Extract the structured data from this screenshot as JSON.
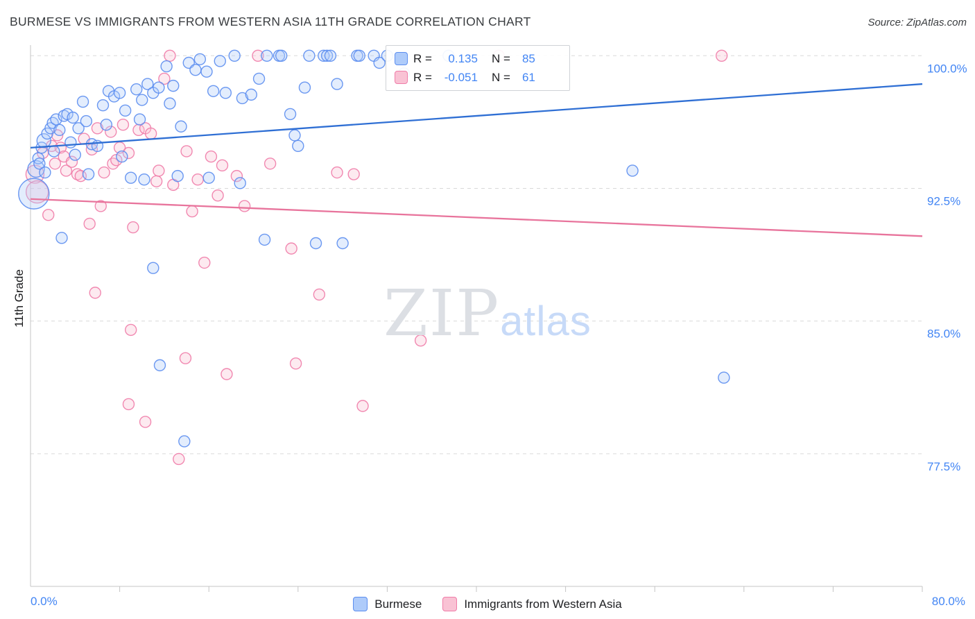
{
  "header": {
    "title": "BURMESE VS IMMIGRANTS FROM WESTERN ASIA 11TH GRADE CORRELATION CHART",
    "source": "Source: ZipAtlas.com"
  },
  "axes": {
    "y_label": "11th Grade",
    "x_min_label": "0.0%",
    "x_max_label": "80.0%"
  },
  "watermark": {
    "part1": "ZIP",
    "part2": "atlas"
  },
  "colors": {
    "axis_label_blue": "#4285f4",
    "grid": "#d9d9d9",
    "axis": "#c4c4c4",
    "blue_fill": "#aecbfa",
    "blue_stroke": "#5b8def",
    "pink_fill": "#f9c2d4",
    "pink_stroke": "#f07ca8"
  },
  "legend_box": {
    "rows": [
      {
        "r_label": "R =",
        "r_value": "0.135",
        "n_label": "N =",
        "n_value": "85",
        "fill": "#aecbfa",
        "stroke": "#5b8def"
      },
      {
        "r_label": "R =",
        "r_value": "-0.051",
        "n_label": "N =",
        "n_value": "61",
        "fill": "#f9c2d4",
        "stroke": "#f07ca8"
      }
    ]
  },
  "bottom_legend": {
    "items": [
      {
        "label": "Burmese",
        "fill": "#aecbfa",
        "stroke": "#5b8def"
      },
      {
        "label": "Immigrants from Western Asia",
        "fill": "#f9c2d4",
        "stroke": "#f07ca8"
      }
    ]
  },
  "chart_data": {
    "type": "scatter",
    "title": "BURMESE VS IMMIGRANTS FROM WESTERN ASIA 11TH GRADE CORRELATION CHART",
    "xlabel": "",
    "ylabel": "11th Grade",
    "xlim": [
      0,
      80
    ],
    "ylim": [
      70,
      100.6
    ],
    "x_ticks": [
      8,
      16,
      24,
      32,
      40,
      48,
      56,
      64,
      72,
      80
    ],
    "y_gridlines": [
      100,
      92.5,
      85,
      77.5
    ],
    "y_tick_labels": [
      {
        "value": 100,
        "label": "100.0%"
      },
      {
        "value": 92.5,
        "label": "92.5%"
      },
      {
        "value": 85,
        "label": "85.0%"
      },
      {
        "value": 77.5,
        "label": "77.5%"
      }
    ],
    "legend_position": "top-center",
    "grid": true,
    "series": [
      {
        "name": "Burmese",
        "r": 0.135,
        "n": 85,
        "fill": "#aecbfa",
        "stroke": "#5b8def",
        "points": [
          [
            0.3,
            92.2,
            22
          ],
          [
            0.5,
            93.6,
            12
          ],
          [
            0.7,
            94.2
          ],
          [
            0.8,
            93.9
          ],
          [
            1.0,
            94.8
          ],
          [
            1.2,
            95.2,
            10
          ],
          [
            1.3,
            93.4
          ],
          [
            1.5,
            95.6
          ],
          [
            1.8,
            95.9
          ],
          [
            2.0,
            96.2
          ],
          [
            2.1,
            94.6
          ],
          [
            2.3,
            96.4
          ],
          [
            2.6,
            95.8
          ],
          [
            2.8,
            89.7
          ],
          [
            3.0,
            96.6
          ],
          [
            3.3,
            96.7
          ],
          [
            3.6,
            95.1
          ],
          [
            3.8,
            96.5
          ],
          [
            4.0,
            94.4
          ],
          [
            4.3,
            95.9
          ],
          [
            4.7,
            97.4
          ],
          [
            5.0,
            96.3
          ],
          [
            5.2,
            93.3
          ],
          [
            5.5,
            95.0
          ],
          [
            6.0,
            94.9
          ],
          [
            6.5,
            97.2
          ],
          [
            6.8,
            96.1
          ],
          [
            7.0,
            98.0
          ],
          [
            7.5,
            97.7
          ],
          [
            8.0,
            97.9
          ],
          [
            8.2,
            94.3
          ],
          [
            8.5,
            96.9
          ],
          [
            9.0,
            93.1
          ],
          [
            9.5,
            98.1
          ],
          [
            9.8,
            96.4
          ],
          [
            10.0,
            97.5
          ],
          [
            10.2,
            93.0
          ],
          [
            10.5,
            98.4
          ],
          [
            11.0,
            97.9
          ],
          [
            11.0,
            88.0
          ],
          [
            11.5,
            98.2
          ],
          [
            11.6,
            82.5
          ],
          [
            12.2,
            99.4
          ],
          [
            12.5,
            97.3
          ],
          [
            12.8,
            98.3
          ],
          [
            13.2,
            93.2
          ],
          [
            13.5,
            96.0
          ],
          [
            13.8,
            78.2
          ],
          [
            14.2,
            99.6
          ],
          [
            14.8,
            99.2
          ],
          [
            15.2,
            99.8
          ],
          [
            15.8,
            99.1
          ],
          [
            16.0,
            93.1
          ],
          [
            16.4,
            98.0
          ],
          [
            17.0,
            99.7
          ],
          [
            17.5,
            97.9
          ],
          [
            18.3,
            100.0
          ],
          [
            18.8,
            92.8
          ],
          [
            19.0,
            97.6
          ],
          [
            19.8,
            97.8
          ],
          [
            20.5,
            98.7
          ],
          [
            21.0,
            89.6
          ],
          [
            21.2,
            100.0
          ],
          [
            22.3,
            100.0
          ],
          [
            22.5,
            100.0
          ],
          [
            23.3,
            96.7
          ],
          [
            23.7,
            95.5
          ],
          [
            24.0,
            94.9
          ],
          [
            24.6,
            98.2
          ],
          [
            25.0,
            100.0
          ],
          [
            25.6,
            89.4
          ],
          [
            26.3,
            100.0
          ],
          [
            26.6,
            100.0
          ],
          [
            26.9,
            100.0
          ],
          [
            27.5,
            98.4
          ],
          [
            28.0,
            89.4
          ],
          [
            29.3,
            100.0
          ],
          [
            29.5,
            100.0
          ],
          [
            30.8,
            100.0
          ],
          [
            31.3,
            99.6
          ],
          [
            32.0,
            100.0
          ],
          [
            33.5,
            99.0
          ],
          [
            37.5,
            100.0
          ],
          [
            54.0,
            93.5
          ],
          [
            62.2,
            81.8
          ]
        ]
      },
      {
        "name": "Immigrants from Western Asia",
        "r": -0.051,
        "n": 61,
        "fill": "#f9c2d4",
        "stroke": "#f07ca8",
        "points": [
          [
            0.4,
            93.3,
            13
          ],
          [
            0.6,
            92.3,
            16
          ],
          [
            1.1,
            94.5
          ],
          [
            1.6,
            91.0
          ],
          [
            1.9,
            94.9
          ],
          [
            2.2,
            93.9
          ],
          [
            2.4,
            95.5
          ],
          [
            2.7,
            94.8
          ],
          [
            3.0,
            94.3
          ],
          [
            3.2,
            93.5
          ],
          [
            3.7,
            94.0
          ],
          [
            4.2,
            93.3
          ],
          [
            4.5,
            93.2
          ],
          [
            4.8,
            95.3
          ],
          [
            5.3,
            90.5
          ],
          [
            5.5,
            94.7
          ],
          [
            5.8,
            86.6
          ],
          [
            6.0,
            95.9
          ],
          [
            6.3,
            91.5
          ],
          [
            6.6,
            93.4
          ],
          [
            7.2,
            95.7
          ],
          [
            7.4,
            93.9
          ],
          [
            7.7,
            94.1
          ],
          [
            8.0,
            94.8
          ],
          [
            8.3,
            96.1
          ],
          [
            8.8,
            94.5
          ],
          [
            8.8,
            80.3
          ],
          [
            9.0,
            84.5
          ],
          [
            9.2,
            90.3
          ],
          [
            9.7,
            95.8
          ],
          [
            10.3,
            95.9
          ],
          [
            10.3,
            79.3
          ],
          [
            10.8,
            95.6
          ],
          [
            11.3,
            92.9
          ],
          [
            11.5,
            93.5
          ],
          [
            12.0,
            98.7
          ],
          [
            12.5,
            100.0
          ],
          [
            12.8,
            92.7
          ],
          [
            13.3,
            77.2
          ],
          [
            13.9,
            82.9
          ],
          [
            14.0,
            94.6
          ],
          [
            14.5,
            91.2
          ],
          [
            15.0,
            93.0
          ],
          [
            15.6,
            88.3
          ],
          [
            16.2,
            94.3
          ],
          [
            16.8,
            92.1
          ],
          [
            17.2,
            93.8
          ],
          [
            17.6,
            82.0
          ],
          [
            18.5,
            93.2
          ],
          [
            19.2,
            91.5
          ],
          [
            20.4,
            100.0
          ],
          [
            21.5,
            93.9
          ],
          [
            23.4,
            89.1
          ],
          [
            23.8,
            82.6
          ],
          [
            25.9,
            86.5
          ],
          [
            27.5,
            93.4
          ],
          [
            29.0,
            93.3
          ],
          [
            29.8,
            80.2
          ],
          [
            35.0,
            83.9
          ],
          [
            42.0,
            100.0
          ],
          [
            62.0,
            100.0
          ]
        ]
      }
    ],
    "trendlines": [
      {
        "series": "Burmese",
        "color": "#2f6fd4",
        "x": [
          0,
          80
        ],
        "y": [
          94.8,
          98.4
        ]
      },
      {
        "series": "Immigrants from Western Asia",
        "color": "#e8749c",
        "x": [
          0,
          80
        ],
        "y": [
          91.9,
          89.8
        ]
      }
    ]
  }
}
